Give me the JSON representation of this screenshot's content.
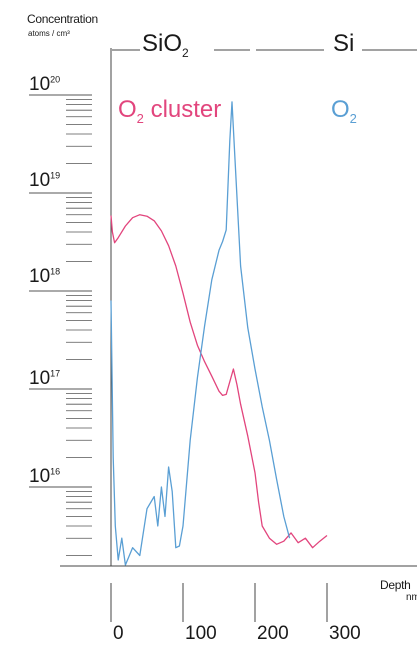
{
  "chart_data": {
    "type": "line",
    "y_label": "Concentration",
    "y_unit": "atoms / cm³",
    "x_label": "Depth",
    "x_unit": "nm",
    "y_scale": "log",
    "y_range": [
      1000000000000000.0,
      1e+20
    ],
    "x_range": [
      0,
      300
    ],
    "y_ticks": [
      {
        "base": "10",
        "exp": "20"
      },
      {
        "base": "10",
        "exp": "19"
      },
      {
        "base": "10",
        "exp": "18"
      },
      {
        "base": "10",
        "exp": "17"
      },
      {
        "base": "10",
        "exp": "16"
      }
    ],
    "x_ticks": [
      "0",
      "100",
      "200",
      "300"
    ],
    "regions": [
      {
        "label_main": "SiO",
        "label_sub": "2"
      },
      {
        "label_main": "Si",
        "label_sub": ""
      }
    ],
    "series": [
      {
        "name_main": "O",
        "name_sub": "2",
        "name_suffix": " cluster",
        "color": "#e2457d",
        "points": [
          [
            0,
            5.9e+18
          ],
          [
            2,
            4e+18
          ],
          [
            5,
            3.1e+18
          ],
          [
            10,
            3.5e+18
          ],
          [
            20,
            4.6e+18
          ],
          [
            30,
            5.6e+18
          ],
          [
            40,
            6e+18
          ],
          [
            50,
            5.8e+18
          ],
          [
            60,
            5.2e+18
          ],
          [
            70,
            4.1e+18
          ],
          [
            80,
            2.9e+18
          ],
          [
            90,
            1.8e+18
          ],
          [
            100,
            9.5e+17
          ],
          [
            110,
            4.8e+17
          ],
          [
            120,
            2.8e+17
          ],
          [
            130,
            1.9e+17
          ],
          [
            140,
            1.35e+17
          ],
          [
            150,
            9.5e+16
          ],
          [
            155,
            8.6e+16
          ],
          [
            160,
            8.8e+16
          ],
          [
            170,
            1.6e+17
          ],
          [
            175,
            1.1e+17
          ],
          [
            180,
            7e+16
          ],
          [
            190,
            3.3e+16
          ],
          [
            200,
            1.4e+16
          ],
          [
            205,
            7000000000000000.0
          ],
          [
            210,
            4000000000000000.0
          ],
          [
            220,
            3000000000000000.0
          ],
          [
            230,
            2600000000000000.0
          ],
          [
            240,
            2800000000000000.0
          ],
          [
            250,
            3400000000000000.0
          ],
          [
            260,
            2700000000000000.0
          ],
          [
            270,
            3000000000000000.0
          ],
          [
            280,
            2400000000000000.0
          ],
          [
            290,
            2800000000000000.0
          ],
          [
            300,
            3200000000000000.0
          ]
        ]
      },
      {
        "name_main": "O",
        "name_sub": "2",
        "name_suffix": "",
        "color": "#5a9fd4",
        "points": [
          [
            0,
            8e+17
          ],
          [
            3,
            2e+16
          ],
          [
            6,
            4000000000000000.0
          ],
          [
            10,
            1800000000000000.0
          ],
          [
            15,
            3000000000000000.0
          ],
          [
            20,
            1600000000000000.0
          ],
          [
            30,
            2400000000000000.0
          ],
          [
            40,
            2000000000000000.0
          ],
          [
            50,
            6000000000000000.0
          ],
          [
            60,
            8000000000000000.0
          ],
          [
            65,
            4000000000000000.0
          ],
          [
            70,
            1e+16
          ],
          [
            75,
            5000000000000000.0
          ],
          [
            80,
            1.6e+16
          ],
          [
            85,
            9000000000000000.0
          ],
          [
            90,
            2400000000000000.0
          ],
          [
            95,
            2500000000000000.0
          ],
          [
            100,
            4000000000000000.0
          ],
          [
            110,
            3e+16
          ],
          [
            120,
            1.3e+17
          ],
          [
            130,
            4.4e+17
          ],
          [
            140,
            1.3e+18
          ],
          [
            150,
            2.6e+18
          ],
          [
            155,
            3.2e+18
          ],
          [
            160,
            4.2e+18
          ],
          [
            165,
            3.4e+19
          ],
          [
            168,
            8.5e+19
          ],
          [
            172,
            2.4e+19
          ],
          [
            180,
            1.8e+18
          ],
          [
            190,
            4.2e+17
          ],
          [
            200,
            1.6e+17
          ],
          [
            210,
            6.6e+16
          ],
          [
            220,
            3e+16
          ],
          [
            230,
            1.2e+16
          ],
          [
            240,
            5000000000000000.0
          ],
          [
            248,
            3000000000000000.0
          ]
        ]
      }
    ]
  }
}
